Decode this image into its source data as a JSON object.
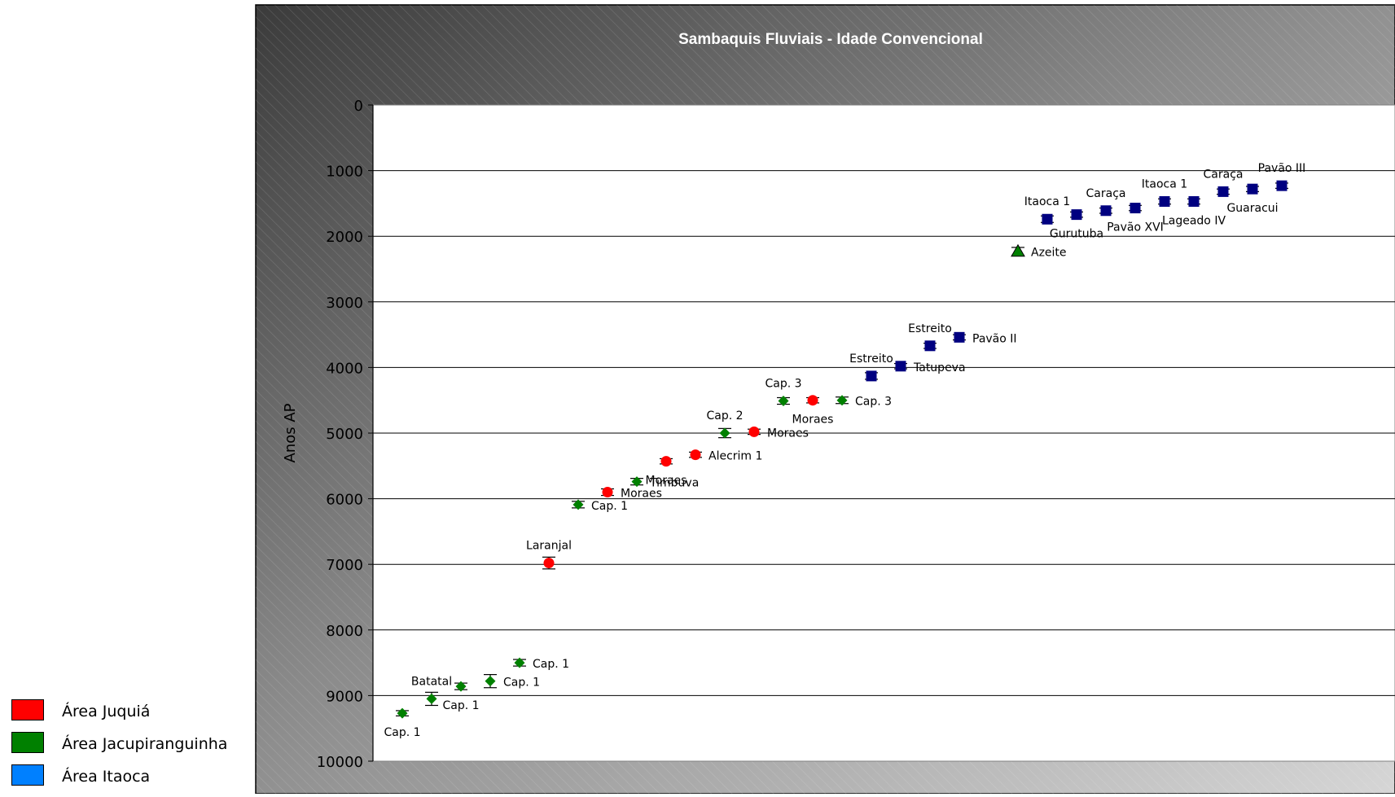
{
  "chart_data": {
    "type": "scatter",
    "title": "Sambaquis Fluviais - Idade Convencional",
    "xlabel": "",
    "ylabel": "Anos AP",
    "ylim": [
      0,
      10000
    ],
    "y_inverted": true,
    "y_ticks": [
      "0",
      "1000",
      "2000",
      "3000",
      "4000",
      "5000",
      "6000",
      "7000",
      "8000",
      "9000",
      "10000"
    ],
    "grid": "horizontal",
    "legend_position": "bottom-left, outside plot",
    "series": [
      {
        "name": "Área Juquiá",
        "color": "#ff0000",
        "marker": "circle",
        "points": [
          {
            "x": 6,
            "y": 6980,
            "err": 90,
            "label": "Laranjal",
            "label_pos": "above"
          },
          {
            "x": 8,
            "y": 5900,
            "err": 50,
            "label": "Moraes",
            "label_pos": "right"
          },
          {
            "x": 10,
            "y": 5430,
            "err": 40,
            "label": "Moraes",
            "label_pos": "below"
          },
          {
            "x": 11,
            "y": 5330,
            "err": 40,
            "label": "Alecrim 1",
            "label_pos": "right"
          },
          {
            "x": 13,
            "y": 4980,
            "err": 40,
            "label": "Moraes",
            "label_pos": "right"
          },
          {
            "x": 15,
            "y": 4500,
            "err": 40,
            "label": "Moraes",
            "label_pos": "below"
          }
        ]
      },
      {
        "name": "Área Jacupiranguinha",
        "color": "#008000",
        "marker": "diamond",
        "points": [
          {
            "x": 1,
            "y": 9270,
            "err": 40,
            "label": "Cap. 1",
            "label_pos": "below"
          },
          {
            "x": 2,
            "y": 9050,
            "err": 100,
            "label": "Batatal",
            "label_pos": "above"
          },
          {
            "x": 3,
            "y": 8860,
            "err": 50,
            "label": "Cap. 1",
            "label_pos": "below"
          },
          {
            "x": 4,
            "y": 8780,
            "err": 100,
            "label": "Cap. 1",
            "label_pos": "right"
          },
          {
            "x": 5,
            "y": 8500,
            "err": 50,
            "label": "Cap. 1",
            "label_pos": "right"
          },
          {
            "x": 7,
            "y": 6090,
            "err": 50,
            "label": "Cap. 1",
            "label_pos": "right"
          },
          {
            "x": 9,
            "y": 5740,
            "err": 50,
            "label": "Timbuva",
            "label_pos": "right"
          },
          {
            "x": 12,
            "y": 5000,
            "err": 70,
            "label": "Cap. 2",
            "label_pos": "above"
          },
          {
            "x": 14,
            "y": 4510,
            "err": 50,
            "label": "Cap. 3",
            "label_pos": "above"
          },
          {
            "x": 16,
            "y": 4500,
            "err": 50,
            "label": "Cap. 3",
            "label_pos": "right"
          },
          {
            "x": 22,
            "y": 2230,
            "err": 60,
            "label": "Azeite",
            "label_pos": "right",
            "marker": "triangle"
          }
        ]
      },
      {
        "name": "Área Itaoca",
        "color": "#0080ff",
        "marker_color": "#000080",
        "marker": "square",
        "points": [
          {
            "x": 17,
            "y": 4130,
            "err": 50,
            "label": "Estreito",
            "label_pos": "above"
          },
          {
            "x": 18,
            "y": 3980,
            "err": 40,
            "label": "Tatupeva",
            "label_pos": "right"
          },
          {
            "x": 19,
            "y": 3670,
            "err": 40,
            "label": "Estreito",
            "label_pos": "above"
          },
          {
            "x": 20,
            "y": 3540,
            "err": 40,
            "label": "Pavão II",
            "label_pos": "right"
          },
          {
            "x": 23,
            "y": 1740,
            "err": 50,
            "label": "Itaoca 1",
            "label_pos": "above"
          },
          {
            "x": 24,
            "y": 1670,
            "err": 40,
            "label": "Gurutuba",
            "label_pos": "below"
          },
          {
            "x": 25,
            "y": 1610,
            "err": 40,
            "label": "Caraça",
            "label_pos": "above"
          },
          {
            "x": 26,
            "y": 1570,
            "err": 40,
            "label": "Pavão XVI",
            "label_pos": "below"
          },
          {
            "x": 27,
            "y": 1470,
            "err": 40,
            "label": "Itaoca 1",
            "label_pos": "above"
          },
          {
            "x": 28,
            "y": 1470,
            "err": 40,
            "label": "Lageado IV",
            "label_pos": "below"
          },
          {
            "x": 29,
            "y": 1320,
            "err": 40,
            "label": "Caraça",
            "label_pos": "above"
          },
          {
            "x": 30,
            "y": 1280,
            "err": 40,
            "label": "Guaracui",
            "label_pos": "below"
          },
          {
            "x": 31,
            "y": 1230,
            "err": 40,
            "label": "Pavão III",
            "label_pos": "above"
          }
        ]
      }
    ]
  }
}
